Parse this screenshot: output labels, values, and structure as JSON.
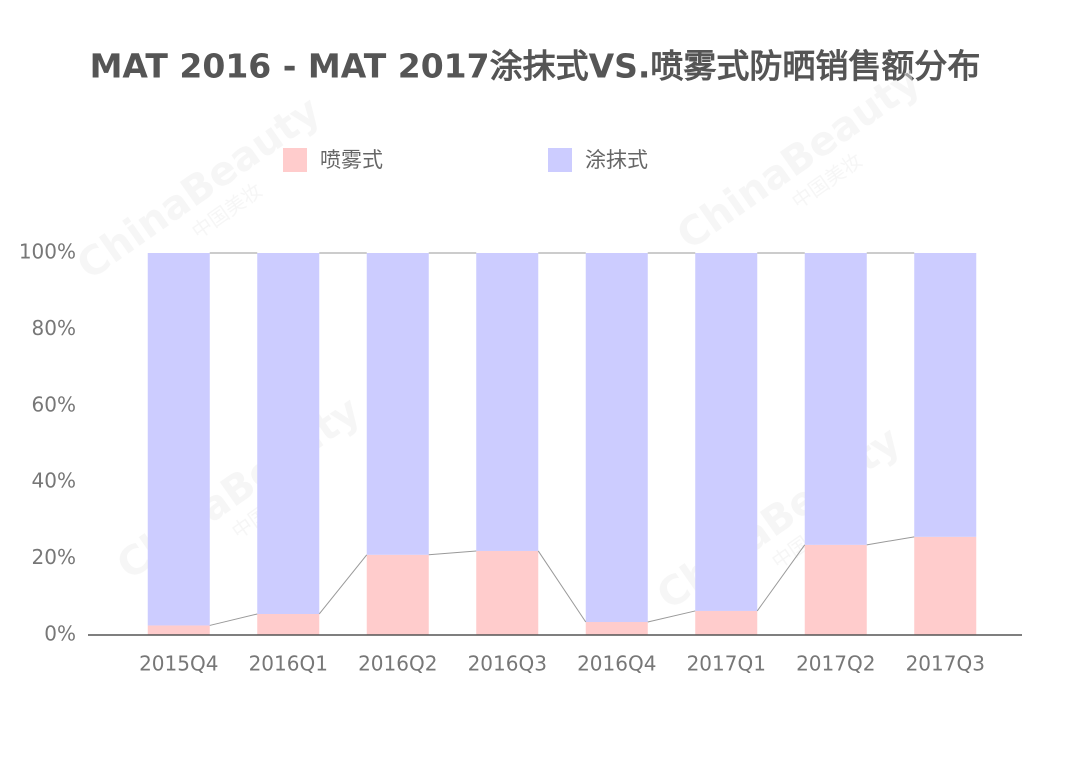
{
  "chart_data": {
    "type": "stacked_bar",
    "title": "MAT 2016 - MAT 2017涂抹式VS.喷雾式防晒销售额分布",
    "watermark": "ChinaBeauty",
    "watermark_sub": "中国美妆",
    "categories": [
      "2015Q4",
      "2016Q1",
      "2016Q2",
      "2016Q3",
      "2016Q4",
      "2017Q1",
      "2017Q2",
      "2017Q3"
    ],
    "series": [
      {
        "name": "喷雾式",
        "color": "#ffcccc",
        "values": [
          2.5,
          5.5,
          21,
          22,
          3.4,
          6.3,
          23.6,
          25.7
        ]
      },
      {
        "name": "涂抹式",
        "color": "#ccccff",
        "values": [
          97.5,
          94.5,
          79,
          78,
          96.6,
          93.7,
          76.4,
          74.3
        ]
      }
    ],
    "ylim": [
      0,
      100
    ],
    "yticks": [
      {
        "value": 0,
        "label": "0%"
      },
      {
        "value": 20,
        "label": "20%"
      },
      {
        "value": 40,
        "label": "40%"
      },
      {
        "value": 60,
        "label": "60%"
      },
      {
        "value": 80,
        "label": "80%"
      },
      {
        "value": 100,
        "label": "100%"
      }
    ],
    "grid": false,
    "legend": "top"
  }
}
